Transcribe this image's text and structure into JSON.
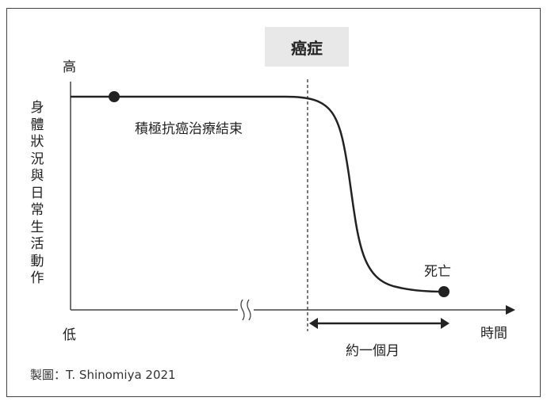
{
  "title_box": "癌症",
  "y_axis": {
    "label": "身體狀況與日常生活動作",
    "high": "高",
    "low": "低"
  },
  "x_axis": {
    "label": "時間"
  },
  "annotations": {
    "treatment_end": "積極抗癌治療結束",
    "death": "死亡",
    "duration": "約一個月"
  },
  "credit": "製圖：T. Shinomiya 2021",
  "colors": {
    "line": "#222222",
    "box": "#e8e8e8"
  }
}
